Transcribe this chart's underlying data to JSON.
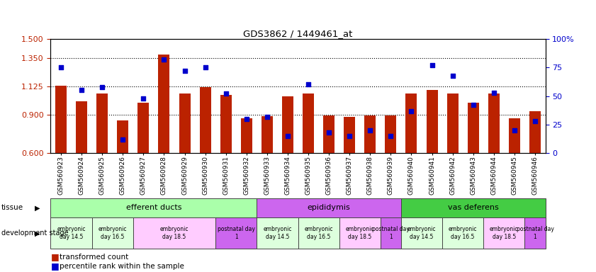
{
  "title": "GDS3862 / 1449461_at",
  "samples": [
    "GSM560923",
    "GSM560924",
    "GSM560925",
    "GSM560926",
    "GSM560927",
    "GSM560928",
    "GSM560929",
    "GSM560930",
    "GSM560931",
    "GSM560932",
    "GSM560933",
    "GSM560934",
    "GSM560935",
    "GSM560936",
    "GSM560937",
    "GSM560938",
    "GSM560939",
    "GSM560940",
    "GSM560941",
    "GSM560942",
    "GSM560943",
    "GSM560944",
    "GSM560945",
    "GSM560946"
  ],
  "red_values": [
    1.13,
    1.01,
    1.07,
    0.855,
    1.0,
    1.375,
    1.07,
    1.12,
    1.06,
    0.875,
    0.89,
    1.05,
    1.07,
    0.895,
    0.885,
    0.895,
    0.895,
    1.07,
    1.1,
    1.07,
    1.0,
    1.07,
    0.875,
    0.93
  ],
  "blue_values": [
    75,
    55,
    58,
    12,
    48,
    82,
    72,
    75,
    52,
    30,
    32,
    15,
    60,
    18,
    15,
    20,
    15,
    37,
    77,
    68,
    42,
    53,
    20,
    28
  ],
  "ylim_left": [
    0.6,
    1.5
  ],
  "ylim_right": [
    0,
    100
  ],
  "yticks_left": [
    0.6,
    0.9,
    1.125,
    1.35,
    1.5
  ],
  "yticks_right": [
    0,
    25,
    50,
    75,
    100
  ],
  "bar_color": "#bb2200",
  "dot_color": "#0000cc",
  "tissue_groups": [
    {
      "label": "efferent ducts",
      "start": 0,
      "end": 10,
      "color": "#aaffaa"
    },
    {
      "label": "epididymis",
      "start": 10,
      "end": 17,
      "color": "#cc66ee"
    },
    {
      "label": "vas deferens",
      "start": 17,
      "end": 24,
      "color": "#44cc44"
    }
  ],
  "dev_stage_groups": [
    {
      "label": "embryonic\nday 14.5",
      "start": 0,
      "end": 2,
      "color": "#ddffdd"
    },
    {
      "label": "embryonic\nday 16.5",
      "start": 2,
      "end": 4,
      "color": "#ddffdd"
    },
    {
      "label": "embryonic\nday 18.5",
      "start": 4,
      "end": 8,
      "color": "#ffccff"
    },
    {
      "label": "postnatal day\n1",
      "start": 8,
      "end": 10,
      "color": "#cc66ee"
    },
    {
      "label": "embryonic\nday 14.5",
      "start": 10,
      "end": 12,
      "color": "#ddffdd"
    },
    {
      "label": "embryonic\nday 16.5",
      "start": 12,
      "end": 14,
      "color": "#ddffdd"
    },
    {
      "label": "embryonic\nday 18.5",
      "start": 14,
      "end": 16,
      "color": "#ffccff"
    },
    {
      "label": "postnatal day\n1",
      "start": 16,
      "end": 17,
      "color": "#cc66ee"
    },
    {
      "label": "embryonic\nday 14.5",
      "start": 17,
      "end": 19,
      "color": "#ddffdd"
    },
    {
      "label": "embryonic\nday 16.5",
      "start": 19,
      "end": 21,
      "color": "#ddffdd"
    },
    {
      "label": "embryonic\nday 18.5",
      "start": 21,
      "end": 23,
      "color": "#ffccff"
    },
    {
      "label": "postnatal day\n1",
      "start": 23,
      "end": 24,
      "color": "#cc66ee"
    }
  ],
  "bg_color": "#ffffff",
  "legend_items": [
    {
      "label": "transformed count",
      "color": "#bb2200"
    },
    {
      "label": "percentile rank within the sample",
      "color": "#0000cc"
    }
  ]
}
